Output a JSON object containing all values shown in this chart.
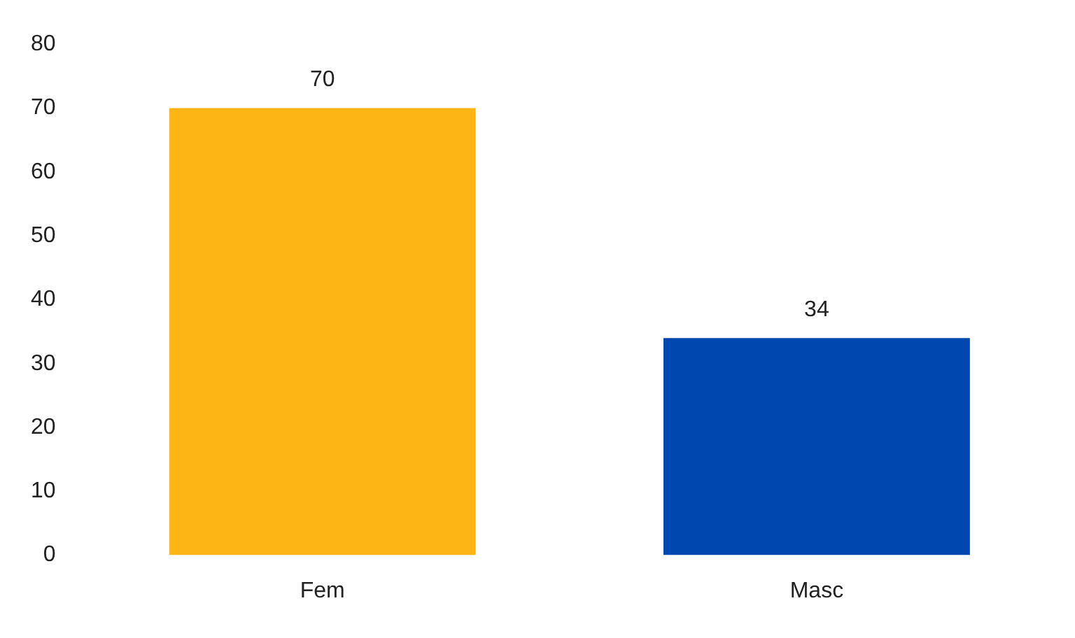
{
  "chart_data": {
    "type": "bar",
    "categories": [
      "Fem",
      "Masc"
    ],
    "values": [
      70,
      34
    ],
    "colors": [
      "#fdb515",
      "#0048b0"
    ],
    "ylim": [
      0,
      80
    ],
    "yticks": [
      0,
      10,
      20,
      30,
      40,
      50,
      60,
      70,
      80
    ],
    "grid": false,
    "legend": false,
    "data_labels": true
  }
}
